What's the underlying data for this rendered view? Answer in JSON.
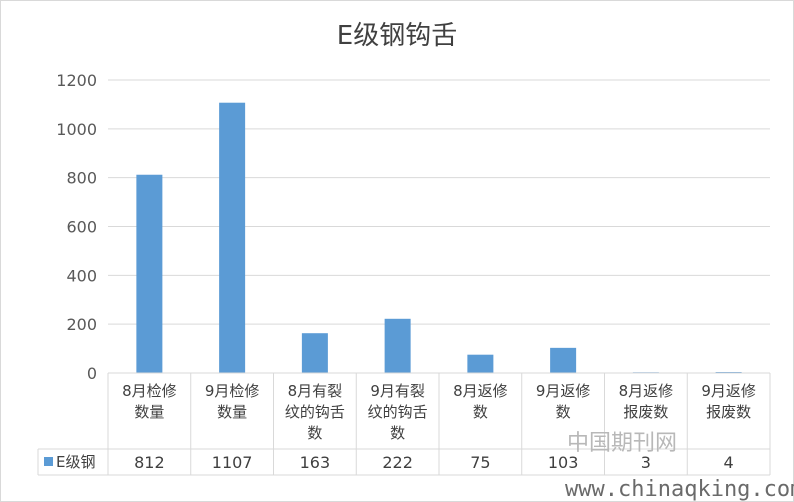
{
  "chart_data": {
    "type": "bar",
    "title": "E级钢钩舌",
    "categories": [
      [
        "8月检修",
        "数量"
      ],
      [
        "9月检修",
        "数量"
      ],
      [
        "8月有裂",
        "纹的钩舌",
        "数"
      ],
      [
        "9月有裂",
        "纹的钩舌",
        "数"
      ],
      [
        "8月返修",
        "数"
      ],
      [
        "9月返修",
        "数"
      ],
      [
        "8月返修",
        "报废数"
      ],
      [
        "9月返修",
        "报废数"
      ]
    ],
    "series": [
      {
        "name": "E级钢",
        "values": [
          812,
          1107,
          163,
          222,
          75,
          103,
          3,
          4
        ]
      }
    ],
    "ylim": [
      0,
      1200
    ],
    "yticks": [
      0,
      200,
      400,
      600,
      800,
      1000,
      1200
    ],
    "grid": true,
    "data_table": true,
    "bar_color": "#5b9bd5",
    "grid_color": "#d9d9d9"
  },
  "watermark": {
    "site_name": "中国期刊网",
    "url": "www.chinaqking.com"
  }
}
